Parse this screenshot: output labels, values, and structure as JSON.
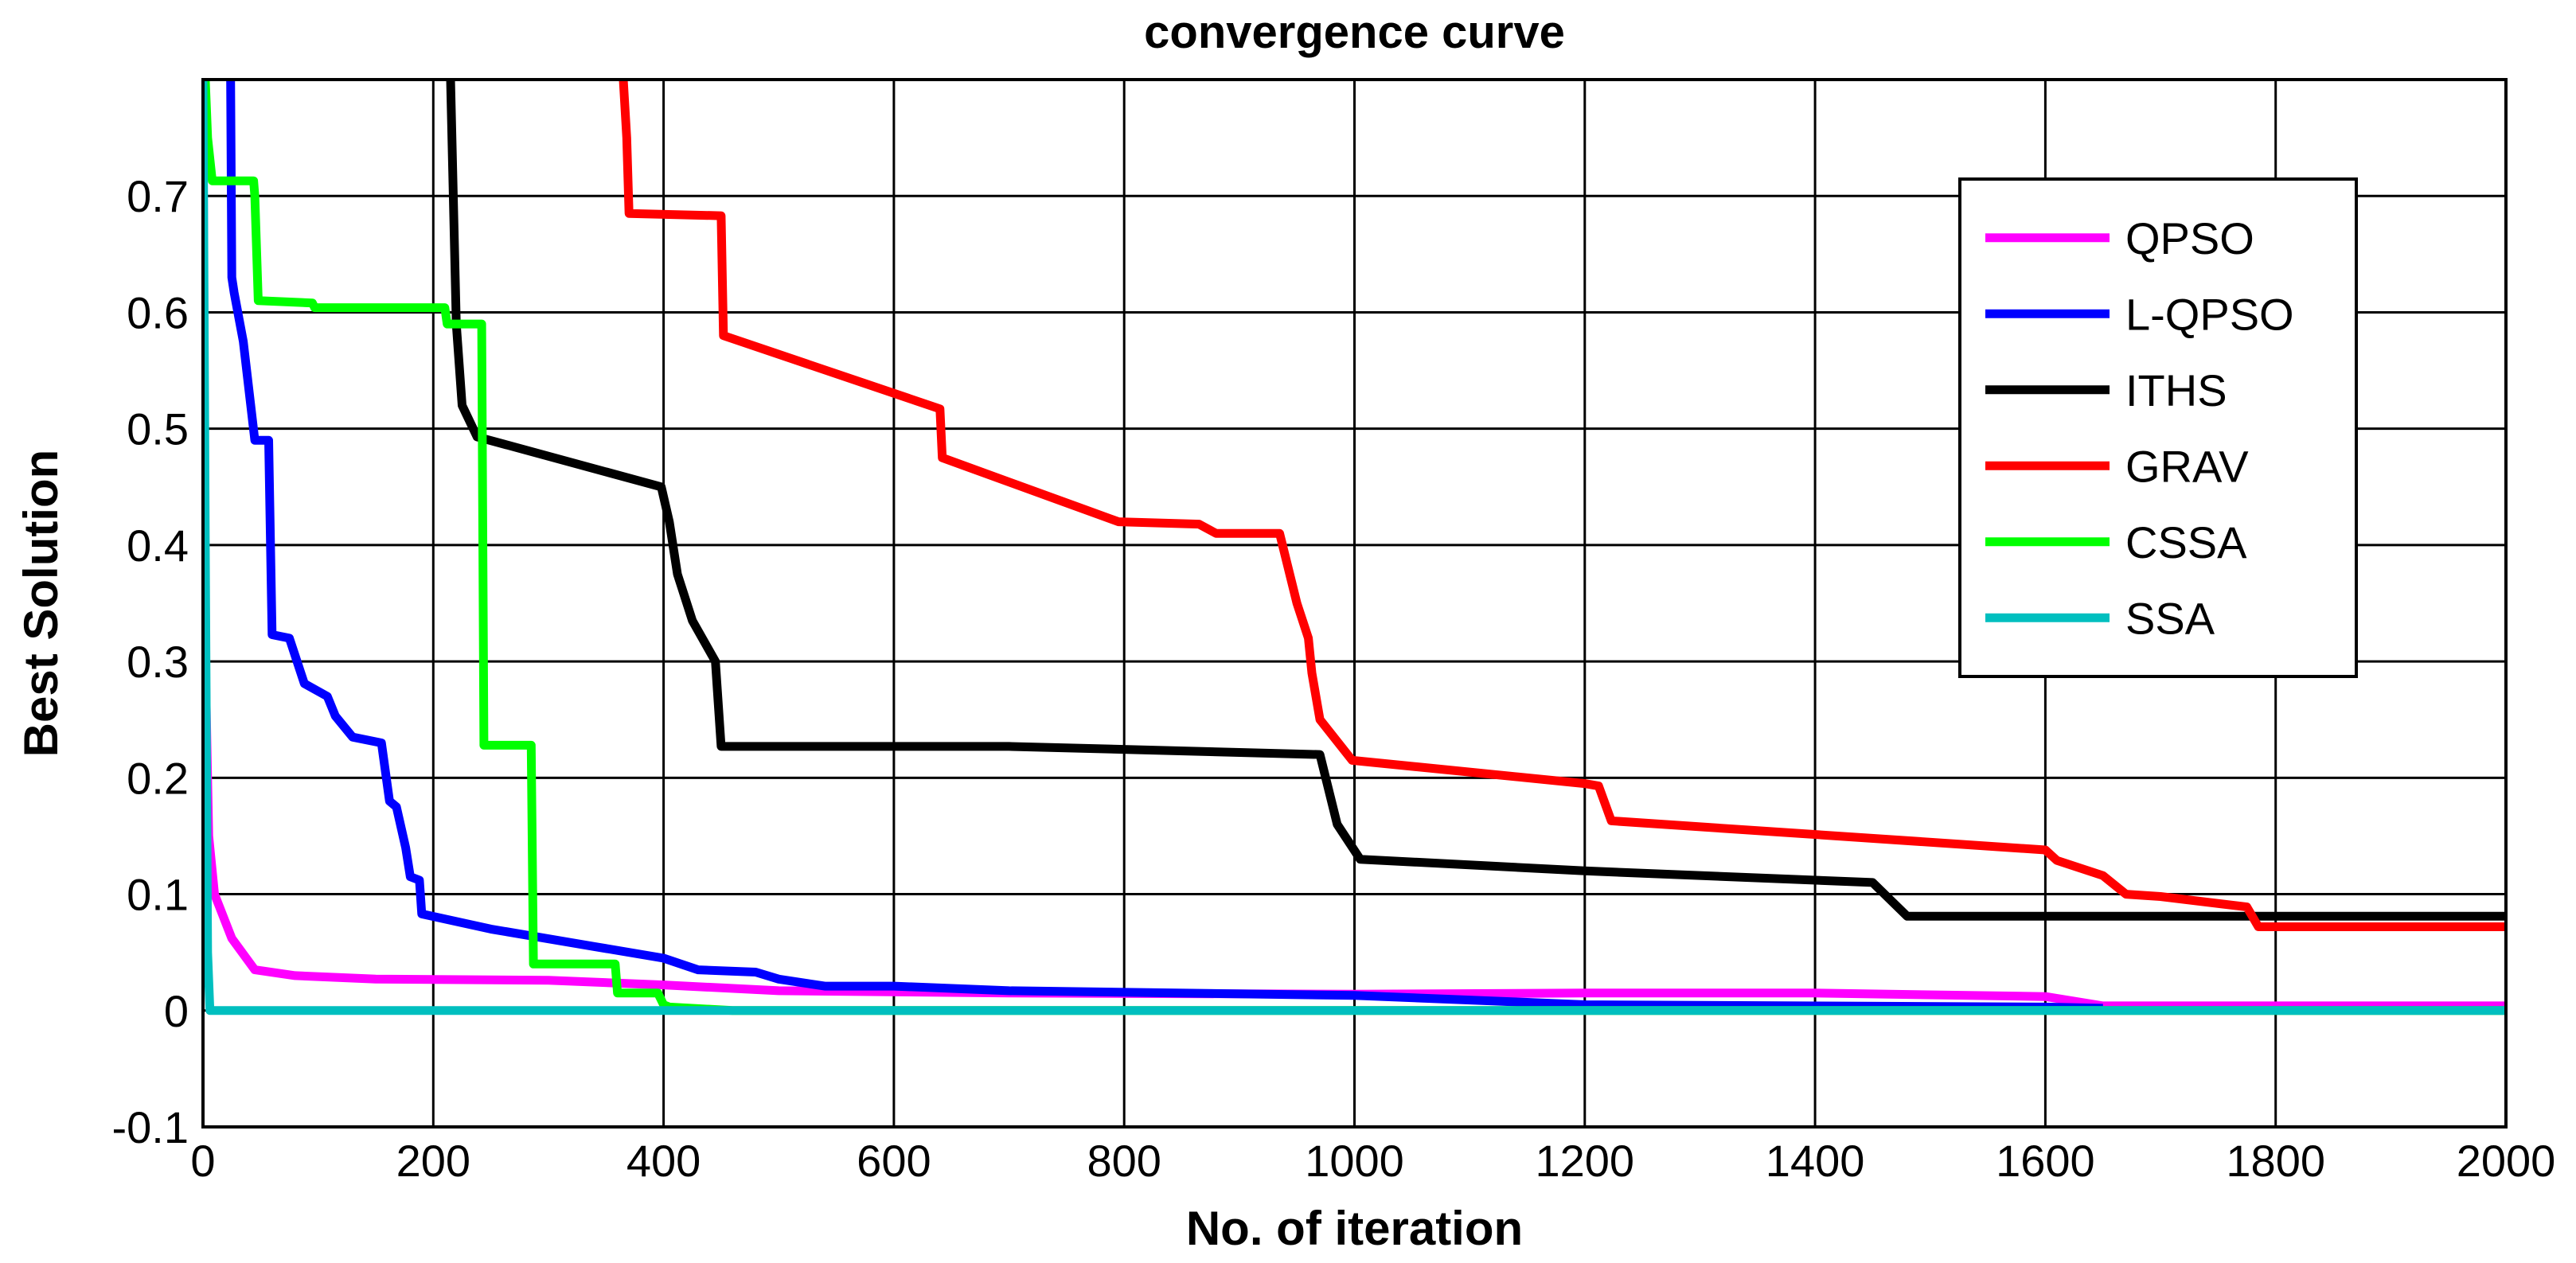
{
  "chart_data": {
    "type": "line",
    "title": "convergence curve",
    "xlabel": "No. of iteration",
    "ylabel": "Best Solution",
    "xlim": [
      0,
      2000
    ],
    "ylim": [
      -0.1,
      0.8
    ],
    "xticks": [
      0,
      200,
      400,
      600,
      800,
      1000,
      1200,
      1400,
      1600,
      1800,
      2000
    ],
    "xtick_labels": [
      "0",
      "200",
      "400",
      "600",
      "800",
      "1000",
      "1200",
      "1400",
      "1600",
      "1800",
      "2000"
    ],
    "yticks": [
      -0.1,
      0,
      0.1,
      0.2,
      0.3,
      0.4,
      0.5,
      0.6,
      0.7
    ],
    "ytick_labels": [
      "-0.1",
      "0",
      "0.1",
      "0.2",
      "0.3",
      "0.4",
      "0.5",
      "0.6",
      "0.7"
    ],
    "grid": true,
    "legend_position": "top-right",
    "series": [
      {
        "name": "QPSO",
        "color": "#ff00ff",
        "x": [
          0,
          2,
          5,
          10,
          25,
          45,
          80,
          150,
          300,
          400,
          500,
          700,
          1000,
          1200,
          1400,
          1600,
          1650,
          2000
        ],
        "y": [
          0.8,
          0.3,
          0.15,
          0.1,
          0.062,
          0.035,
          0.03,
          0.027,
          0.026,
          0.022,
          0.017,
          0.015,
          0.014,
          0.015,
          0.015,
          0.012,
          0.004,
          0.004
        ]
      },
      {
        "name": "L-QPSO",
        "color": "#0000ff",
        "x": [
          24,
          25,
          27,
          35,
          45,
          57,
          60,
          75,
          88,
          108,
          115,
          130,
          155,
          162,
          168,
          176,
          180,
          188,
          190,
          250,
          340,
          400,
          430,
          480,
          500,
          540,
          600,
          700,
          1000,
          1150,
          1200,
          1600,
          1650
        ],
        "y": [
          0.8,
          0.63,
          0.617,
          0.575,
          0.49,
          0.49,
          0.323,
          0.32,
          0.281,
          0.27,
          0.253,
          0.235,
          0.23,
          0.18,
          0.175,
          0.14,
          0.115,
          0.112,
          0.083,
          0.07,
          0.055,
          0.045,
          0.035,
          0.033,
          0.027,
          0.021,
          0.021,
          0.017,
          0.013,
          0.007,
          0.005,
          0.003,
          0.002
        ]
      },
      {
        "name": "ITHS",
        "color": "#000000",
        "x": [
          215,
          220,
          225,
          238,
          398,
          405,
          412,
          425,
          445,
          450,
          700,
          970,
          985,
          1005,
          1200,
          1450,
          1480,
          2000
        ],
        "y": [
          0.8,
          0.59,
          0.52,
          0.493,
          0.45,
          0.42,
          0.375,
          0.335,
          0.3,
          0.227,
          0.227,
          0.22,
          0.16,
          0.13,
          0.12,
          0.11,
          0.081,
          0.081
        ]
      },
      {
        "name": "GRAV",
        "color": "#ff0000",
        "x": [
          365,
          368,
          370,
          450,
          452,
          640,
          642,
          795,
          865,
          880,
          935,
          950,
          960,
          963,
          970,
          998,
          1200,
          1212,
          1223,
          1600,
          1610,
          1650,
          1670,
          1700,
          1775,
          1785,
          2000
        ],
        "y": [
          0.8,
          0.75,
          0.685,
          0.683,
          0.58,
          0.517,
          0.475,
          0.42,
          0.418,
          0.41,
          0.41,
          0.35,
          0.32,
          0.29,
          0.25,
          0.215,
          0.195,
          0.193,
          0.163,
          0.138,
          0.129,
          0.116,
          0.1,
          0.098,
          0.089,
          0.072,
          0.072
        ]
      },
      {
        "name": "CSSA",
        "color": "#00ff00",
        "x": [
          2,
          4,
          8,
          44,
          45,
          48,
          95,
          97,
          210,
          212,
          242,
          244,
          285,
          287,
          358,
          360,
          395,
          400,
          405,
          460,
          2000
        ],
        "y": [
          0.8,
          0.75,
          0.713,
          0.713,
          0.7,
          0.61,
          0.608,
          0.604,
          0.604,
          0.59,
          0.59,
          0.228,
          0.228,
          0.04,
          0.04,
          0.015,
          0.015,
          0.005,
          0.003,
          0.0,
          0.0
        ]
      },
      {
        "name": "SSA",
        "color": "#00bfbf",
        "x": [
          0,
          2,
          4,
          6,
          2000
        ],
        "y": [
          0.8,
          0.4,
          0.05,
          0.0,
          0.0
        ]
      }
    ]
  }
}
